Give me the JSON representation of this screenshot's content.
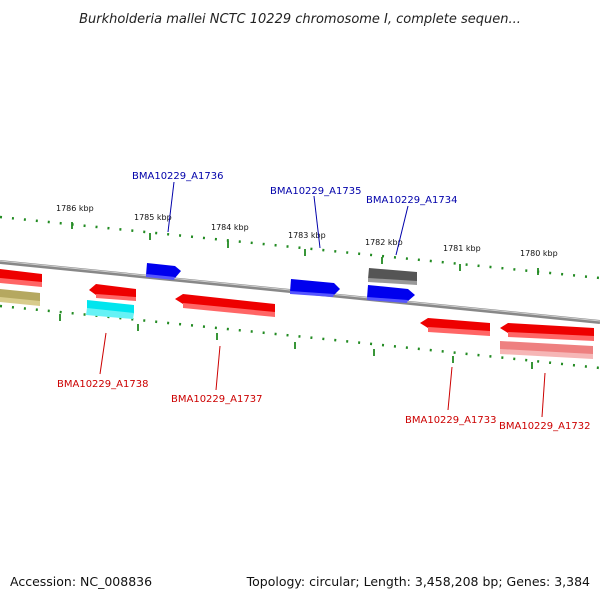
{
  "title": "Burkholderia mallei NCTC 10229 chromosome I, complete sequen...",
  "footer": {
    "accession": "Accession: NC_008836",
    "topology": "Topology: circular; Length: 3,458,208 bp; Genes: 3,384"
  },
  "scale_labels": [
    "1786 kbp",
    "1785 kbp",
    "1784 kbp",
    "1783 kbp",
    "1782 kbp",
    "1781 kbp",
    "1780 kbp"
  ],
  "gene_labels": [
    {
      "text": "BMA10229_A1736",
      "color": "#0000aa"
    },
    {
      "text": "BMA10229_A1735",
      "color": "#0000aa"
    },
    {
      "text": "BMA10229_A1734",
      "color": "#0000aa"
    },
    {
      "text": "BMA10229_A1738",
      "color": "#cc0000"
    },
    {
      "text": "BMA10229_A1737",
      "color": "#cc0000"
    },
    {
      "text": "BMA10229_A1733",
      "color": "#cc0000"
    },
    {
      "text": "BMA10229_A1732",
      "color": "#cc0000"
    }
  ],
  "colors": {
    "forward": "#0000ee",
    "reverse": "#ee0000",
    "backbone": "#888888",
    "ticks": "#228b22",
    "olive": "#b5a860",
    "cyan": "#00e5ee",
    "gray": "#555555",
    "pink": "#ee8080"
  }
}
